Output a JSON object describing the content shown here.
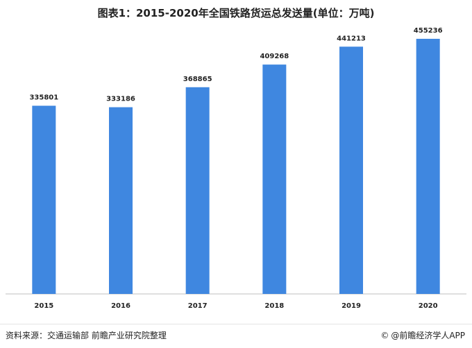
{
  "title": "图表1：2015-2020年全国铁路货运总发送量(单位：万吨)",
  "footer": {
    "source": "资料来源：交通运输部 前瞻产业研究院整理",
    "brand_icon": "copyright-icon",
    "brand": "@前瞻经济学人APP"
  },
  "colors": {
    "bar": "#3f87e0",
    "axis": "#bfbfbf",
    "text": "#222222"
  },
  "chart_data": {
    "type": "bar",
    "title": "图表1：2015-2020年全国铁路货运总发送量(单位：万吨)",
    "categories": [
      "2015",
      "2016",
      "2017",
      "2018",
      "2019",
      "2020"
    ],
    "values": [
      335801,
      333186,
      368865,
      409268,
      441213,
      455236
    ],
    "ylim": [
      0,
      475000
    ],
    "xlabel": "",
    "ylabel": "",
    "grid": false,
    "legend": "none"
  }
}
